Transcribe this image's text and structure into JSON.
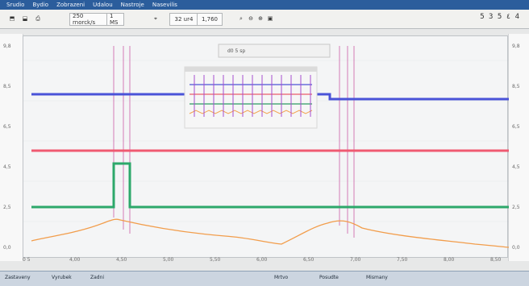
{
  "menu": [
    "Srudio",
    "Bydio",
    "Zobrazeni",
    "Udalou",
    "Nastroje",
    "Nasevilis"
  ],
  "toolbar": {
    "scan_label": "250 rnorck/s",
    "num_label": "1 MS",
    "field_1": "32 ur4",
    "field_2": "1,760",
    "right_code": "5 3 5 ٤ 4"
  },
  "graph_tab": "d0 5 sp",
  "status": {
    "left": "Zastaveny",
    "left2": "Vyrubek",
    "left3": "Zadni",
    "center": "Mrtvo",
    "center2": "Posudte",
    "center3": "Mismany"
  },
  "bottom_ticks": [
    "0 5",
    "4,00",
    "4,50",
    "5,00",
    "5,50",
    "6,00",
    "6,50",
    "7,00",
    "7,50",
    "8,00",
    "8,50",
    "9,00"
  ],
  "left_labels": [
    "9,8",
    "8,5",
    "6,5",
    "4,5",
    "2,5",
    "0,0"
  ],
  "right_labels": [
    "9,8",
    "8,5",
    "6,5",
    "4,5",
    "2,5",
    "0,0"
  ]
}
